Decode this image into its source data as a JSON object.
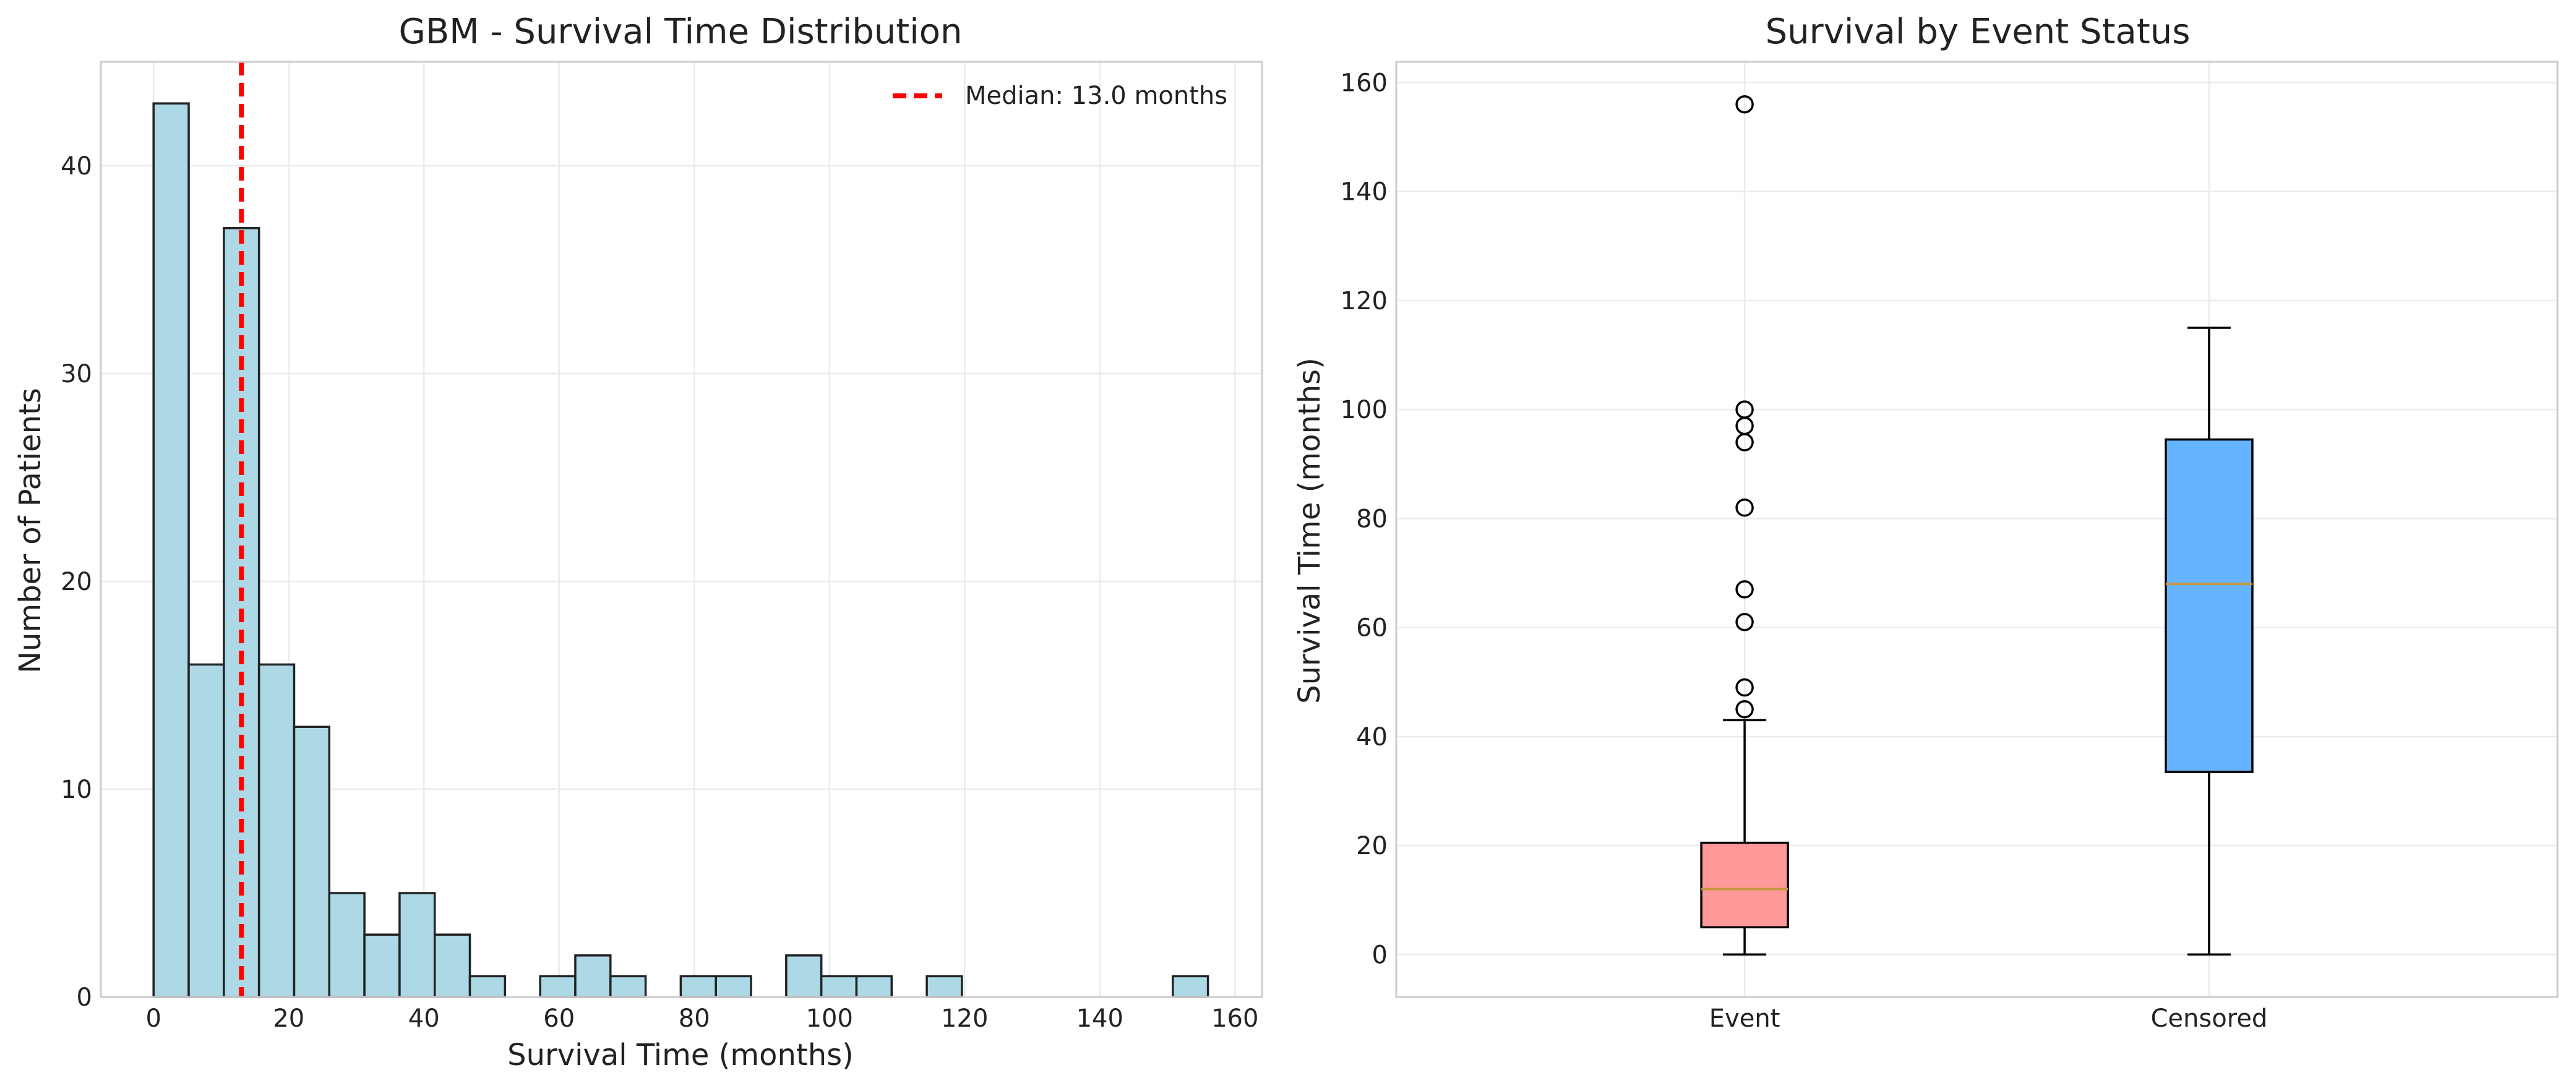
{
  "chart_data": [
    {
      "type": "bar",
      "title": "GBM - Survival Time Distribution",
      "xlabel": "Survival Time (months)",
      "ylabel": "Number of Patients",
      "xlim": [
        -7.8,
        164
      ],
      "ylim": [
        0,
        45
      ],
      "xticks": [
        0,
        20,
        40,
        60,
        80,
        100,
        120,
        140,
        160
      ],
      "yticks": [
        0,
        10,
        20,
        30,
        40
      ],
      "grid": true,
      "bin_edges": [
        0,
        5.2,
        10.4,
        15.6,
        20.8,
        26.0,
        31.2,
        36.4,
        41.6,
        46.8,
        52.0,
        57.2,
        62.4,
        67.6,
        72.8,
        78.0,
        83.2,
        88.4,
        93.6,
        98.8,
        104.0,
        109.2,
        114.4,
        119.6,
        124.8,
        130.0,
        135.2,
        140.4,
        145.6,
        150.8,
        156.0
      ],
      "counts": [
        43,
        16,
        37,
        16,
        13,
        5,
        3,
        5,
        3,
        1,
        0,
        1,
        2,
        1,
        0,
        1,
        1,
        0,
        2,
        1,
        1,
        0,
        1,
        0,
        0,
        0,
        0,
        0,
        0,
        1
      ],
      "bar_color": "#add8e6",
      "median_line": {
        "x": 13.0,
        "label": "Median: 13.0 months",
        "color": "#ff0000"
      },
      "legend_position": "upper right"
    },
    {
      "type": "box",
      "title": "Survival by Event Status",
      "xlabel": "",
      "ylabel": "Survival Time (months)",
      "categories": [
        "Event",
        "Censored"
      ],
      "ylim": [
        -7.8,
        163.8
      ],
      "yticks": [
        0,
        20,
        40,
        60,
        80,
        100,
        120,
        140,
        160
      ],
      "grid": true,
      "boxes": [
        {
          "name": "Event",
          "whisker_low": 0,
          "q1": 5,
          "median": 12,
          "q3": 20.5,
          "whisker_high": 43,
          "outliers": [
            45,
            49,
            61,
            67,
            82,
            94,
            97,
            100,
            156
          ],
          "color": "#ff9999"
        },
        {
          "name": "Censored",
          "whisker_low": 0,
          "q1": 33.5,
          "median": 68,
          "q3": 94.5,
          "whisker_high": 115,
          "outliers": [],
          "color": "#66b3ff"
        }
      ],
      "median_color": "#c8963e"
    }
  ]
}
